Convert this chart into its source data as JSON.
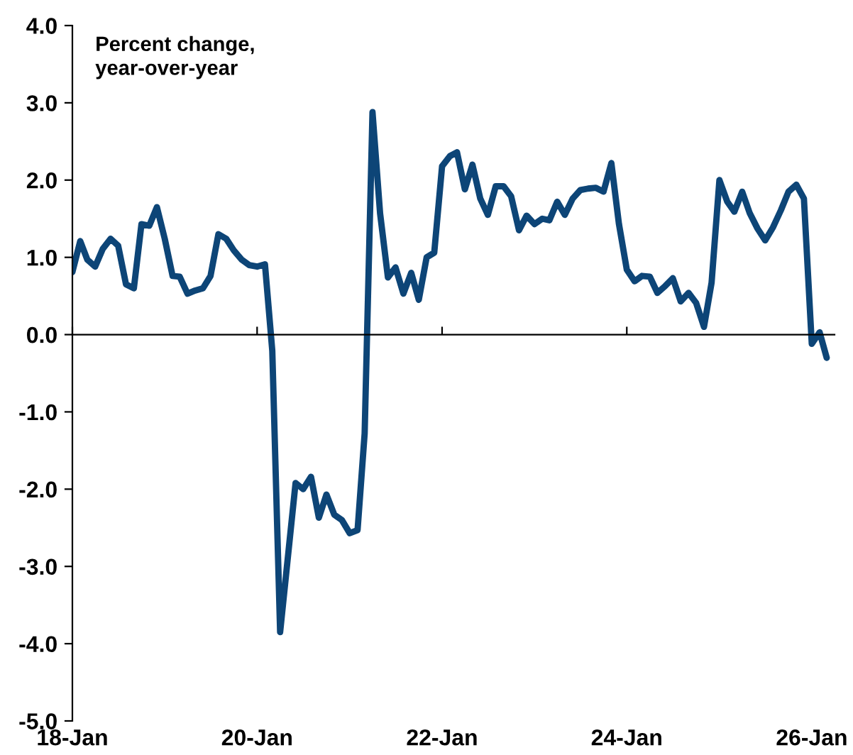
{
  "chart_data": {
    "type": "line",
    "annotations": [
      "Percent change,\nyear-over-year"
    ],
    "x": [
      "2018-01",
      "2018-02",
      "2018-03",
      "2018-04",
      "2018-05",
      "2018-06",
      "2018-07",
      "2018-08",
      "2018-09",
      "2018-10",
      "2018-11",
      "2018-12",
      "2019-01",
      "2019-02",
      "2019-03",
      "2019-04",
      "2019-05",
      "2019-06",
      "2019-07",
      "2019-08",
      "2019-09",
      "2019-10",
      "2019-11",
      "2019-12",
      "2020-01",
      "2020-02",
      "2020-03",
      "2020-04",
      "2020-05",
      "2020-06",
      "2020-07",
      "2020-08",
      "2020-09",
      "2020-10",
      "2020-11",
      "2020-12",
      "2021-01",
      "2021-02",
      "2021-03",
      "2021-04",
      "2021-05",
      "2021-06",
      "2021-07",
      "2021-08",
      "2021-09",
      "2021-10",
      "2021-11",
      "2021-12",
      "2022-01",
      "2022-02",
      "2022-03",
      "2022-04",
      "2022-05",
      "2022-06",
      "2022-07",
      "2022-08",
      "2022-09",
      "2022-10",
      "2022-11",
      "2022-12",
      "2023-01",
      "2023-02",
      "2023-03",
      "2023-04",
      "2023-05",
      "2023-06",
      "2023-07",
      "2023-08",
      "2023-09",
      "2023-10",
      "2023-11",
      "2023-12",
      "2024-01",
      "2024-02",
      "2024-03",
      "2024-04",
      "2024-05",
      "2024-06",
      "2024-07",
      "2024-08",
      "2024-09",
      "2024-10",
      "2024-11",
      "2024-12",
      "2025-01",
      "2025-02",
      "2025-03",
      "2025-04",
      "2025-05",
      "2025-06",
      "2025-07",
      "2025-08",
      "2025-09",
      "2025-10",
      "2025-11",
      "2025-12",
      "2026-01",
      "2026-02",
      "2026-03"
    ],
    "series": [
      {
        "color": "#0d4577",
        "values": [
          0.81,
          1.21,
          0.97,
          0.88,
          1.11,
          1.24,
          1.15,
          0.65,
          0.6,
          1.43,
          1.41,
          1.65,
          1.24,
          0.76,
          0.75,
          0.53,
          0.57,
          0.6,
          0.76,
          1.3,
          1.24,
          1.09,
          0.97,
          0.9,
          0.88,
          0.91,
          -0.21,
          -3.85,
          -2.9,
          -1.92,
          -2.0,
          -1.84,
          -2.37,
          -2.07,
          -2.33,
          -2.4,
          -2.57,
          -2.53,
          -1.28,
          2.88,
          1.57,
          0.74,
          0.87,
          0.53,
          0.8,
          0.45,
          1.0,
          1.06,
          2.18,
          2.31,
          2.36,
          1.88,
          2.2,
          1.76,
          1.55,
          1.92,
          1.92,
          1.79,
          1.35,
          1.54,
          1.43,
          1.5,
          1.48,
          1.72,
          1.55,
          1.76,
          1.87,
          1.89,
          1.9,
          1.85,
          2.22,
          1.43,
          0.84,
          0.69,
          0.76,
          0.75,
          0.54,
          0.63,
          0.73,
          0.43,
          0.54,
          0.41,
          0.1,
          0.67,
          2.0,
          1.72,
          1.59,
          1.85,
          1.57,
          1.37,
          1.22,
          1.39,
          1.61,
          1.85,
          1.94,
          1.76,
          -0.12,
          0.03,
          -0.3
        ]
      }
    ],
    "xlim": [
      "2018-01",
      "2026-04"
    ],
    "xticks": [
      {
        "value": "2018-01",
        "label": "18-Jan"
      },
      {
        "value": "2020-01",
        "label": "20-Jan"
      },
      {
        "value": "2022-01",
        "label": "22-Jan"
      },
      {
        "value": "2024-01",
        "label": "24-Jan"
      },
      {
        "value": "2026-01",
        "label": "26-Jan"
      }
    ],
    "ylim": [
      -5,
      4
    ],
    "yticks": [
      {
        "value": 4,
        "label": "4.0"
      },
      {
        "value": 3,
        "label": "3.0"
      },
      {
        "value": 2,
        "label": "2.0"
      },
      {
        "value": 1,
        "label": "1.0"
      },
      {
        "value": 0,
        "label": "0.0"
      },
      {
        "value": -1,
        "label": "-1.0"
      },
      {
        "value": -2,
        "label": "-2.0"
      },
      {
        "value": -3,
        "label": "-3.0"
      },
      {
        "value": -4,
        "label": "-4.0"
      },
      {
        "value": -5,
        "label": "-5.0"
      }
    ],
    "marker": "none",
    "line_style": "solid"
  }
}
